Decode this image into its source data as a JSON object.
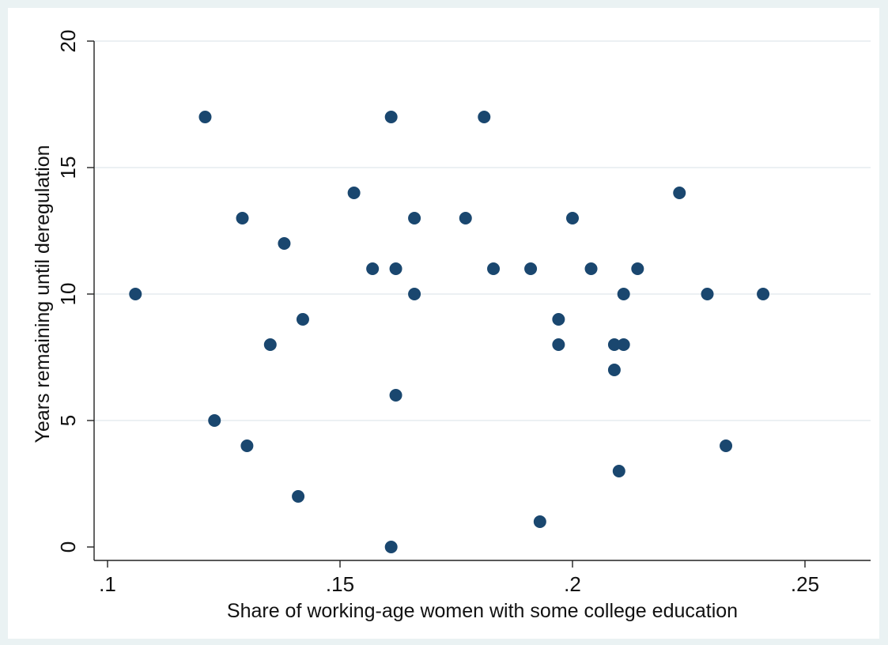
{
  "chart_data": {
    "type": "scatter",
    "title": "",
    "xlabel": "Share of working-age women with some college education",
    "ylabel": "Years remaining until deregulation",
    "xlim": [
      0.1,
      0.25
    ],
    "ylim": [
      0,
      20
    ],
    "x_ticks": [
      0.1,
      0.15,
      0.2,
      0.25
    ],
    "x_tick_labels": [
      ".1",
      ".15",
      ".2",
      ".25"
    ],
    "y_ticks": [
      0,
      5,
      10,
      15,
      20
    ],
    "y_tick_labels": [
      "0",
      "5",
      "10",
      "15",
      "20"
    ],
    "grid": "horizontal",
    "legend": "none",
    "colors": {
      "outer_background": "#eaf2f3",
      "plot_background": "#ffffff",
      "marker": "#1a476f",
      "grid": "#e6ecef"
    },
    "series": [
      {
        "points": [
          [
            0.106,
            10
          ],
          [
            0.121,
            17
          ],
          [
            0.123,
            5
          ],
          [
            0.129,
            13
          ],
          [
            0.13,
            4
          ],
          [
            0.135,
            8
          ],
          [
            0.138,
            12
          ],
          [
            0.141,
            2
          ],
          [
            0.142,
            9
          ],
          [
            0.153,
            14
          ],
          [
            0.157,
            11
          ],
          [
            0.161,
            17
          ],
          [
            0.161,
            0
          ],
          [
            0.162,
            11
          ],
          [
            0.162,
            6
          ],
          [
            0.166,
            10
          ],
          [
            0.166,
            13
          ],
          [
            0.177,
            13
          ],
          [
            0.181,
            17
          ],
          [
            0.183,
            11
          ],
          [
            0.191,
            11
          ],
          [
            0.193,
            1
          ],
          [
            0.197,
            9
          ],
          [
            0.197,
            8
          ],
          [
            0.2,
            13
          ],
          [
            0.204,
            11
          ],
          [
            0.209,
            8
          ],
          [
            0.209,
            7
          ],
          [
            0.21,
            3
          ],
          [
            0.211,
            10
          ],
          [
            0.211,
            8
          ],
          [
            0.214,
            11
          ],
          [
            0.223,
            14
          ],
          [
            0.229,
            10
          ],
          [
            0.233,
            4
          ],
          [
            0.241,
            10
          ]
        ]
      }
    ]
  }
}
